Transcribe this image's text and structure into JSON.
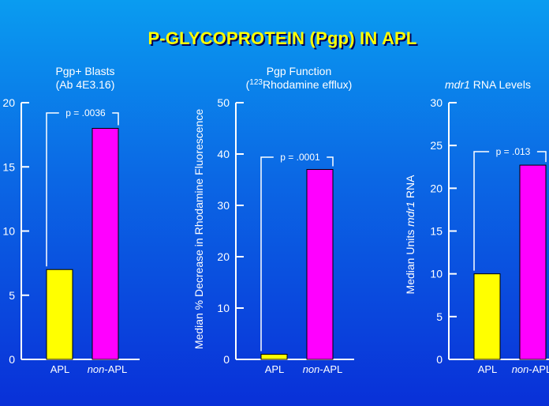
{
  "title": "P-GLYCOPROTEIN (Pgp) IN APL",
  "colors": {
    "apl": "#ffff00",
    "non_apl": "#ff00ff",
    "text": "#ffffff",
    "title": "#ffff00"
  },
  "chart_data": [
    {
      "type": "bar",
      "title": "Pgp+ Blasts",
      "subtitle": "(Ab 4E3.16)",
      "ylabel": "",
      "categories": [
        "APL",
        "non-APL"
      ],
      "values": [
        7,
        18
      ],
      "ylim": [
        0,
        20
      ],
      "yticks": [
        0,
        5,
        10,
        15,
        20
      ],
      "annotation": "p = .0036"
    },
    {
      "type": "bar",
      "title": "Pgp  Function",
      "subtitle_sup": "123",
      "subtitle_prefix": "(",
      "subtitle_rest": "Rhodamine efflux)",
      "ylabel": "Median % Decrease in Rhodamine Fluorescence",
      "categories": [
        "APL",
        "non-APL"
      ],
      "values": [
        1,
        37
      ],
      "ylim": [
        0,
        50
      ],
      "yticks": [
        0,
        10,
        20,
        30,
        40,
        50
      ],
      "annotation": "p = .0001"
    },
    {
      "type": "bar",
      "title_italic": "mdr1",
      "title_rest": "  RNA Levels",
      "ylabel_prefix": "Median Units ",
      "ylabel_italic": "mdr1",
      "ylabel_suffix": " RNA",
      "categories": [
        "APL",
        "non-APL"
      ],
      "values": [
        10,
        22.7
      ],
      "ylim": [
        0,
        30
      ],
      "yticks": [
        0,
        5,
        10,
        15,
        20,
        25,
        30
      ],
      "annotation": "p = .013"
    }
  ]
}
